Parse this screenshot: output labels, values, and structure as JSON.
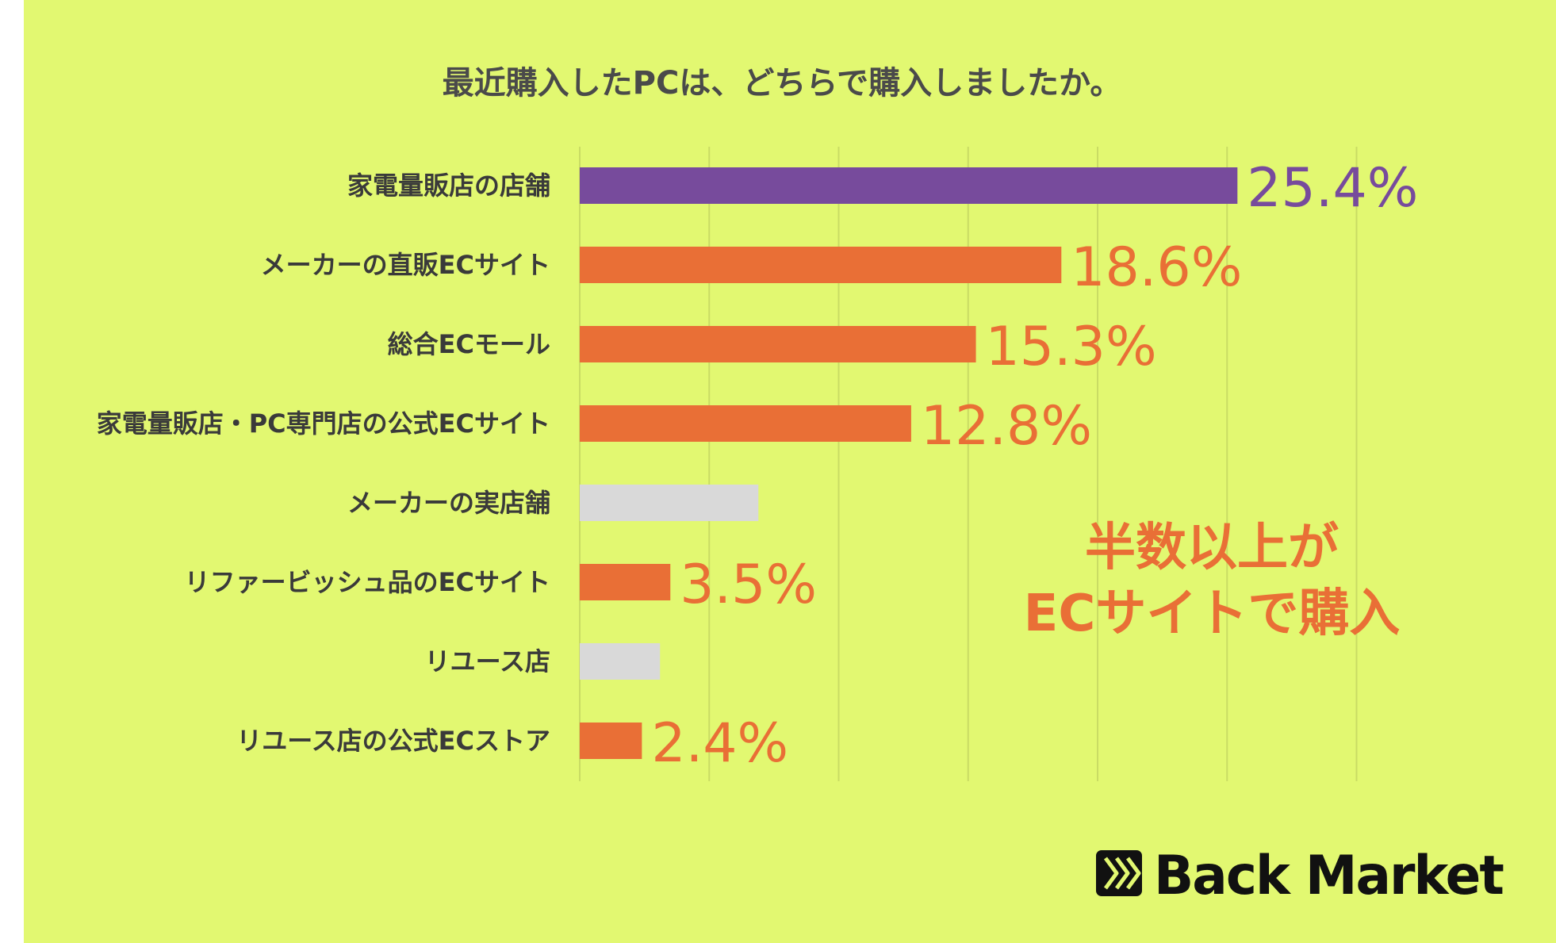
{
  "chart_data": {
    "type": "bar",
    "orientation": "horizontal",
    "title": "最近購入したPCは、どちらで購入しましたか。",
    "categories": [
      "家電量販店の店舗",
      "メーカーの直販ECサイト",
      "総合ECモール",
      "家電量販店・PC専門店の公式ECサイト",
      "メーカーの実店舗",
      "リファービッシュ品のECサイト",
      "リユース店",
      "リユース店の公式ECストア"
    ],
    "values": [
      25.4,
      18.6,
      15.3,
      12.8,
      6.9,
      3.5,
      3.1,
      2.4
    ],
    "value_labels": [
      "25.4%",
      "18.6%",
      "15.3%",
      "12.8%",
      "",
      "3.5%",
      "",
      "2.4%"
    ],
    "bar_colors": [
      "#774b9c",
      "#e96f36",
      "#e96f36",
      "#e96f36",
      "#d9d9d9",
      "#e96f36",
      "#d9d9d9",
      "#e96f36"
    ],
    "xlim": [
      0,
      30
    ],
    "grid": true,
    "xlabel": "",
    "ylabel": ""
  },
  "annotation": {
    "line1": "半数以上が",
    "line2": "ECサイトで購入",
    "color": "#e96f36"
  },
  "brand": {
    "name": "Back Market",
    "logo_icon": "chevrons-icon"
  },
  "colors": {
    "background": "#e2f871",
    "accent": "#e96f36",
    "highlight": "#774b9c",
    "muted": "#d9d9d9"
  }
}
